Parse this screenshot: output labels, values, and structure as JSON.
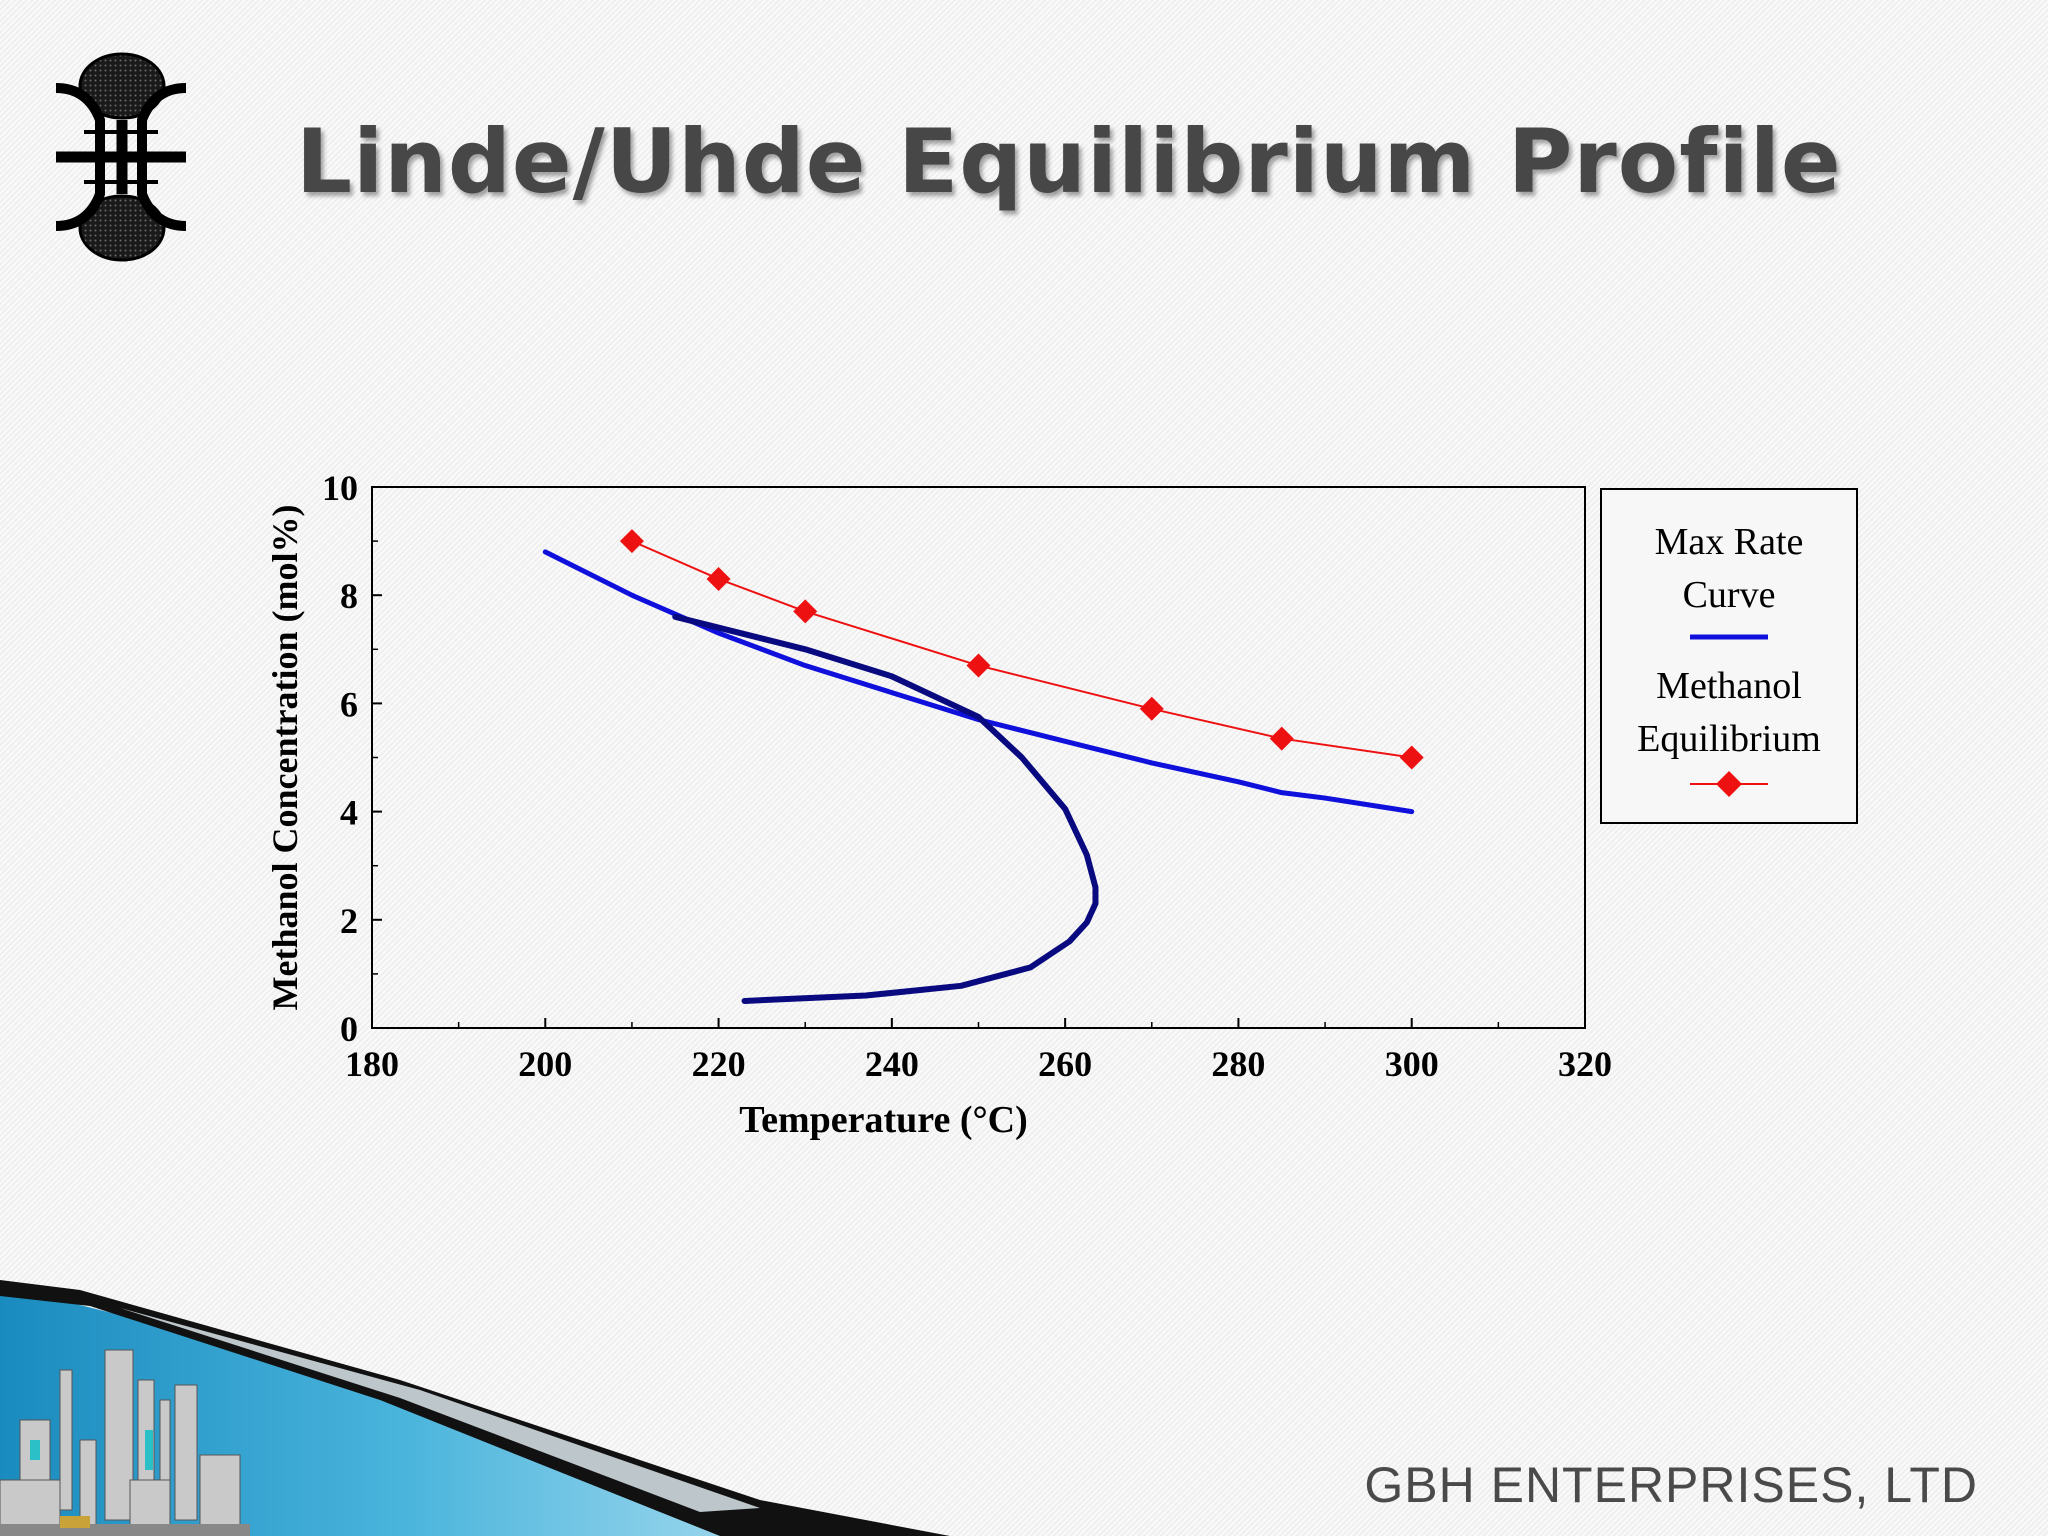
{
  "slide": {
    "title": "Linde/Uhde Equilibrium Profile",
    "company": "GBH ENTERPRISES, LTD",
    "logo_icon": "gbh-logo-icon",
    "footer_art_icon": "industrial-plant-banner-icon"
  },
  "legend": {
    "max_rate_line1": "Max Rate",
    "max_rate_line2": "Curve",
    "equilibrium_line1": "Methanol",
    "equilibrium_line2": "Equilibrium"
  },
  "colors": {
    "max_rate": "#1010dd",
    "equilibrium": "#ee1111",
    "profile": "#0a0a80",
    "title": "#474747"
  },
  "chart_data": {
    "type": "line",
    "xlabel": "Temperature (°C)",
    "ylabel": "Methanol Concentration (mol%)",
    "xlim": [
      180,
      320
    ],
    "ylim": [
      0,
      10
    ],
    "xticks": [
      180,
      200,
      220,
      240,
      260,
      280,
      300,
      320
    ],
    "yticks": [
      0,
      2,
      4,
      6,
      8,
      10
    ],
    "legend_position": "right",
    "series": [
      {
        "name": "Max Rate Curve",
        "marker": "none",
        "x": [
          200,
          210,
          220,
          230,
          240,
          250,
          260,
          270,
          280,
          285,
          290,
          300
        ],
        "y": [
          8.8,
          8.0,
          7.3,
          6.7,
          6.2,
          5.7,
          5.3,
          4.9,
          4.55,
          4.35,
          4.25,
          4.0
        ]
      },
      {
        "name": "Methanol Equilibrium",
        "marker": "diamond",
        "x": [
          210,
          220,
          230,
          250,
          270,
          285,
          300
        ],
        "y": [
          9.0,
          8.3,
          7.7,
          6.7,
          5.9,
          5.35,
          5.0
        ]
      },
      {
        "marker": "none",
        "x": [
          215,
          230,
          240,
          250,
          255,
          260,
          262.5,
          263.5,
          263.5,
          262.5,
          260.5,
          256,
          248,
          237,
          223
        ],
        "y": [
          7.6,
          7.0,
          6.5,
          5.75,
          5.0,
          4.05,
          3.2,
          2.6,
          2.3,
          1.95,
          1.6,
          1.12,
          0.78,
          0.6,
          0.5
        ]
      }
    ]
  }
}
